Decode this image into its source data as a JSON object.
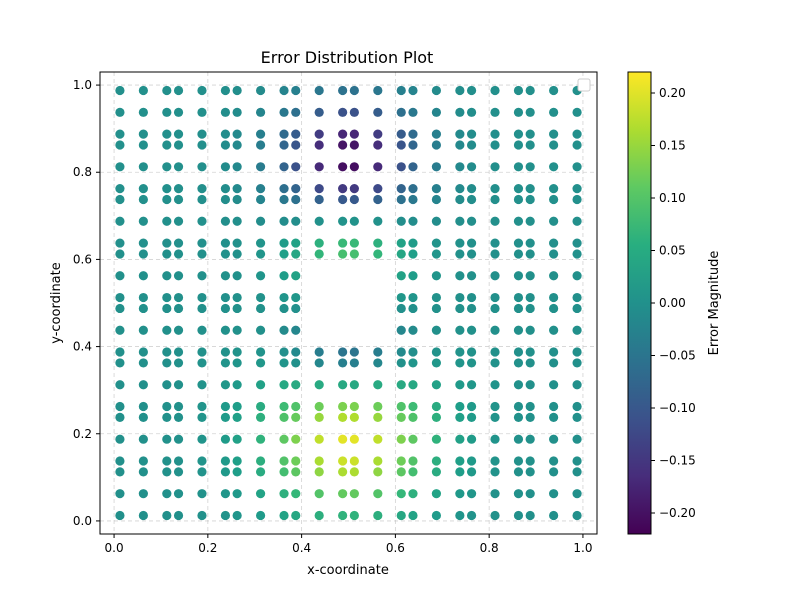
{
  "chart_data": {
    "type": "scatter",
    "title": "Error Distribution Plot",
    "xlabel": "x-coordinate",
    "ylabel": "y-coordinate",
    "xlim": [
      -0.03,
      1.03
    ],
    "ylim": [
      -0.03,
      1.03
    ],
    "xticks": [
      0.0,
      0.2,
      0.4,
      0.6,
      0.8,
      1.0
    ],
    "yticks": [
      0.0,
      0.2,
      0.4,
      0.6,
      0.8,
      1.0
    ],
    "tick_labels_x": [
      "0.0",
      "0.2",
      "0.4",
      "0.6",
      "0.8",
      "1.0"
    ],
    "tick_labels_y": [
      "0.0",
      "0.2",
      "0.4",
      "0.6",
      "0.8",
      "1.0"
    ],
    "grid": true,
    "legend": "upper-right (empty)",
    "colormap": "viridis",
    "grid_coordinates": [
      0.0125,
      0.0625,
      0.1125,
      0.1375,
      0.1875,
      0.2375,
      0.2625,
      0.3125,
      0.3625,
      0.3875,
      0.4375,
      0.4875,
      0.5125,
      0.5625,
      0.6125,
      0.6375,
      0.6875,
      0.7375,
      0.7625,
      0.8125,
      0.8625,
      0.8875,
      0.9375,
      0.9875
    ],
    "excluded_region": {
      "x": [
        0.4,
        0.6
      ],
      "y": [
        0.4,
        0.6
      ]
    },
    "colorbar": {
      "label": "Error Magnitude",
      "range": [
        -0.22,
        0.22
      ],
      "ticks": [
        -0.2,
        -0.15,
        -0.1,
        -0.05,
        0.0,
        0.05,
        0.1,
        0.15,
        0.2
      ],
      "tick_labels": [
        "−0.20",
        "−0.15",
        "−0.10",
        "−0.05",
        "0.00",
        "0.05",
        "0.10",
        "0.15",
        "0.20"
      ]
    },
    "error_hotspots": [
      {
        "x": 0.5,
        "y": 0.82,
        "amplitude": -0.22,
        "width": 0.1
      },
      {
        "x": 0.5,
        "y": 0.2,
        "amplitude": 0.22,
        "width": 0.12
      },
      {
        "x": 0.5,
        "y": 0.63,
        "amplitude": 0.12,
        "width": 0.09
      },
      {
        "x": 0.5,
        "y": 0.37,
        "amplitude": -0.12,
        "width": 0.09
      }
    ]
  }
}
